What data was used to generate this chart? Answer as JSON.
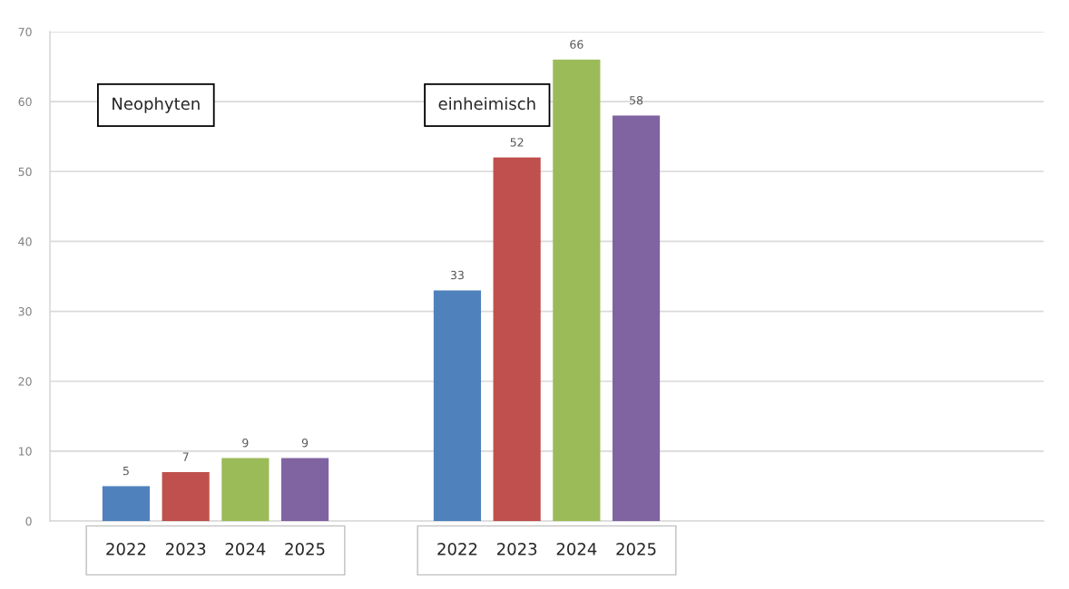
{
  "chart_data": {
    "type": "bar",
    "categories": [
      null,
      null,
      null
    ],
    "series": [
      {
        "name": "2022",
        "color": "#4f81bd",
        "values": [
          5,
          33,
          null
        ]
      },
      {
        "name": "2023",
        "color": "#c0504d",
        "values": [
          7,
          52,
          null
        ]
      },
      {
        "name": "2024",
        "color": "#9bbb59",
        "values": [
          9,
          66,
          null
        ]
      },
      {
        "name": "2025",
        "color": "#8064a2",
        "values": [
          9,
          58,
          null
        ]
      }
    ],
    "ylim": [
      0,
      70
    ],
    "yticks": [
      0,
      10,
      20,
      30,
      40,
      50,
      60,
      70
    ],
    "grid": "y",
    "data_labels": true,
    "annotations": [
      "Neophyten",
      "einheimisch"
    ]
  }
}
